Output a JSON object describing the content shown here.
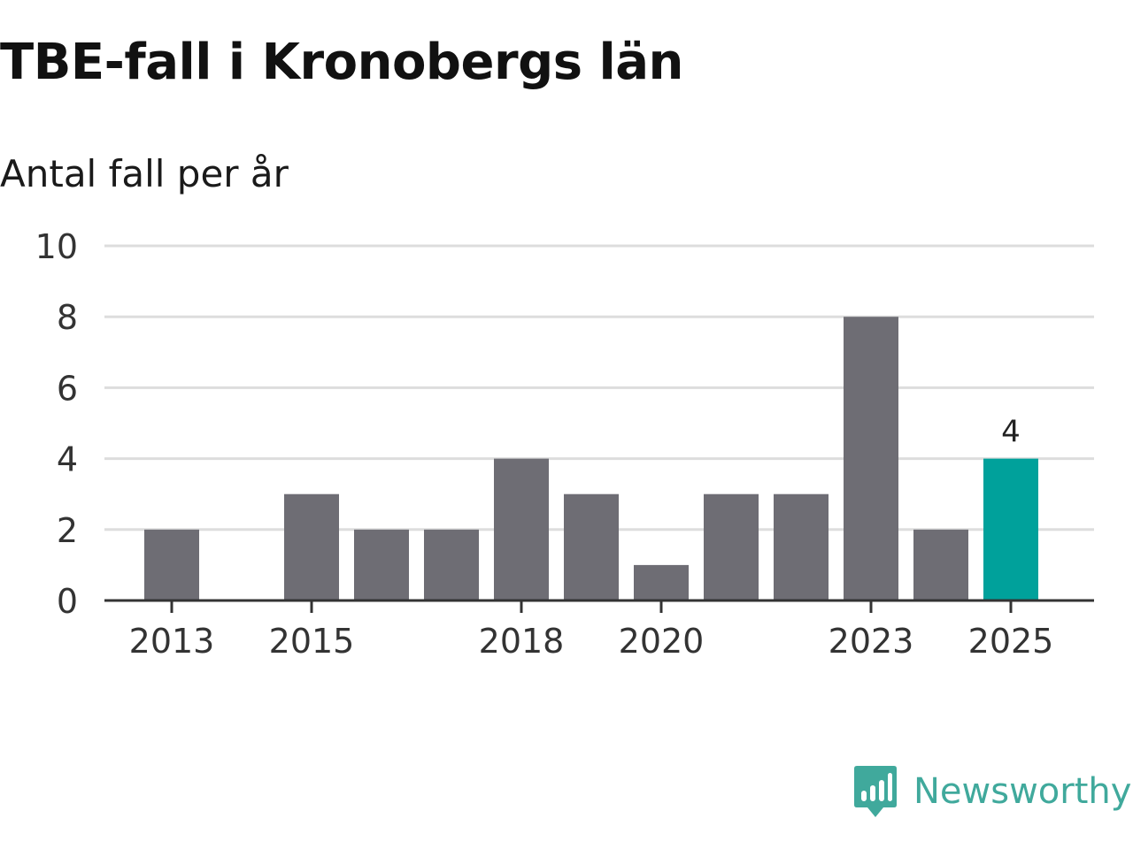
{
  "header": {
    "title": "TBE-fall i Kronobergs län",
    "subtitle": "Antal fall per år"
  },
  "brand": {
    "name": "Newsworthy",
    "color": "#40a99c"
  },
  "colors": {
    "bar": "#6e6d74",
    "highlight": "#00a19b",
    "grid": "#dddddd",
    "axis": "#333333"
  },
  "chart_data": {
    "type": "bar",
    "title": "TBE-fall i Kronobergs län",
    "ylabel": "Antal fall per år",
    "xlabel": "",
    "categories": [
      "2013",
      "2014",
      "2015",
      "2016",
      "2017",
      "2018",
      "2019",
      "2020",
      "2021",
      "2022",
      "2023",
      "2024",
      "2025"
    ],
    "values": [
      2,
      0,
      3,
      2,
      2,
      4,
      3,
      1,
      3,
      3,
      8,
      2,
      4
    ],
    "xtick_labels": [
      "2013",
      "2015",
      "2018",
      "2020",
      "2023",
      "2025"
    ],
    "yticks": [
      0,
      2,
      4,
      6,
      8,
      10
    ],
    "ylim": [
      0,
      10
    ],
    "grid": true,
    "highlight": {
      "category": "2025",
      "label": "4"
    }
  }
}
